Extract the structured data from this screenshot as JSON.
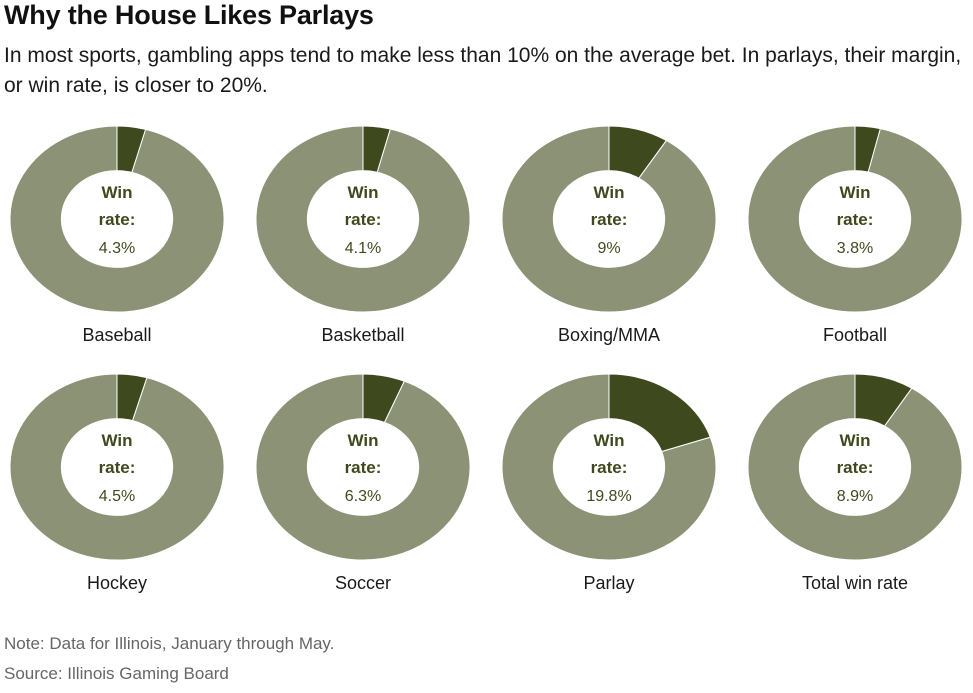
{
  "header": {
    "title": "Why the House Likes Parlays",
    "subtitle": "In most sports, gambling apps tend to make less than 10% on the average bet. In parlays, their margin, or win rate, is closer to 20%."
  },
  "footer": {
    "note": "Note: Data for Illinois, January through May.",
    "source": "Source: Illinois Gaming Board"
  },
  "colors": {
    "win_rate": "#3e4a1e",
    "remainder": "#8c9275",
    "center_text": "#3e4a1e",
    "slice_border": "#ffffff"
  },
  "chart_data": {
    "type": "pie",
    "title": "Why the House Likes Parlays",
    "center_label": "Win rate:",
    "unit": "%",
    "charts": [
      {
        "category": "Baseball",
        "value": 4.3,
        "display": "4.3%"
      },
      {
        "category": "Basketball",
        "value": 4.1,
        "display": "4.1%"
      },
      {
        "category": "Boxing/MMA",
        "value": 9,
        "display": "9%"
      },
      {
        "category": "Football",
        "value": 3.8,
        "display": "3.8%"
      },
      {
        "category": "Hockey",
        "value": 4.5,
        "display": "4.5%"
      },
      {
        "category": "Soccer",
        "value": 6.3,
        "display": "6.3%"
      },
      {
        "category": "Parlay",
        "value": 19.8,
        "display": "19.8%"
      },
      {
        "category": "Total win rate",
        "value": 8.9,
        "display": "8.9%"
      }
    ]
  }
}
